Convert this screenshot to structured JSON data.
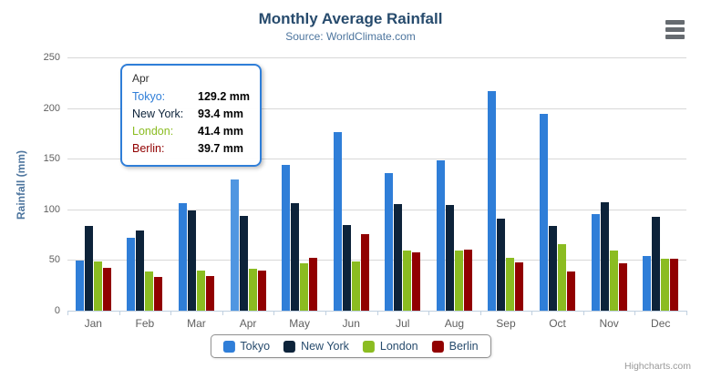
{
  "header": {
    "title": "Monthly Average Rainfall",
    "subtitle": "Source: WorldClimate.com"
  },
  "menu": {
    "icon": "hamburger-icon"
  },
  "credits": {
    "label": "Highcharts.com"
  },
  "tooltip": {
    "header": "Apr",
    "rows": [
      {
        "label": "Tokyo:",
        "value": "129.2 mm",
        "color": "#2f7ed8"
      },
      {
        "label": "New York:",
        "value": "93.4 mm",
        "color": "#0d233a"
      },
      {
        "label": "London:",
        "value": "41.4 mm",
        "color": "#8bbc21"
      },
      {
        "label": "Berlin:",
        "value": "39.7 mm",
        "color": "#910000"
      }
    ]
  },
  "chart_data": {
    "type": "bar",
    "title": "Monthly Average Rainfall",
    "subtitle": "Source: WorldClimate.com",
    "categories": [
      "Jan",
      "Feb",
      "Mar",
      "Apr",
      "May",
      "Jun",
      "Jul",
      "Aug",
      "Sep",
      "Oct",
      "Nov",
      "Dec"
    ],
    "series": [
      {
        "name": "Tokyo",
        "color": "#2f7ed8",
        "values": [
          49.9,
          71.5,
          106.4,
          129.2,
          144.0,
          176.0,
          135.6,
          148.5,
          216.4,
          194.1,
          95.6,
          54.4
        ]
      },
      {
        "name": "New York",
        "color": "#0d233a",
        "values": [
          83.6,
          78.8,
          98.5,
          93.4,
          106.0,
          84.5,
          105.0,
          104.3,
          91.2,
          83.5,
          106.6,
          92.3
        ]
      },
      {
        "name": "London",
        "color": "#8bbc21",
        "values": [
          48.9,
          38.8,
          39.3,
          41.4,
          47.0,
          48.3,
          59.0,
          59.6,
          52.4,
          65.2,
          59.3,
          51.2
        ]
      },
      {
        "name": "Berlin",
        "color": "#910000",
        "values": [
          42.4,
          33.2,
          34.5,
          39.7,
          52.6,
          75.5,
          57.4,
          60.4,
          47.6,
          39.1,
          46.8,
          51.1
        ]
      }
    ],
    "xlabel": "",
    "ylabel": "Rainfall (mm)",
    "ylim": [
      0,
      250
    ],
    "yticks": [
      0,
      50,
      100,
      150,
      200,
      250
    ],
    "grid": true,
    "legend_position": "bottom",
    "hover": {
      "series": "Tokyo",
      "category": "Apr",
      "highlight_color": "#5096e1"
    }
  },
  "theme": {
    "grid_color": "#d8d8d8",
    "axis_line_color": "#c0d0e0",
    "tick_label_color": "#606060",
    "legend_border_color": "#909090",
    "tooltip_border_color": "#2f7ed8"
  }
}
